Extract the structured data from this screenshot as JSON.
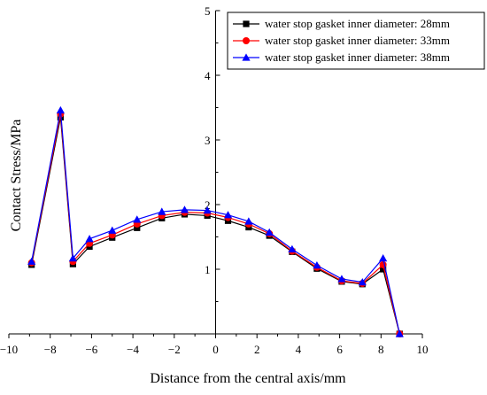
{
  "chart_data": {
    "type": "line",
    "xlabel": "Distance from the central axis/mm",
    "ylabel": "Contact Stress/MPa",
    "xlim": [
      -10,
      10
    ],
    "ylim": [
      0,
      5
    ],
    "xticks": [
      -10,
      -8,
      -6,
      -4,
      -2,
      0,
      2,
      4,
      6,
      8,
      10
    ],
    "yticks": [
      1,
      2,
      3,
      4,
      5
    ],
    "y_axis_position": "x = 0",
    "grid": false,
    "legend_position": "top-right",
    "series": [
      {
        "name": "water stop gasket inner diameter: 28mm",
        "color": "#000000",
        "marker": "square",
        "x": [
          -8.9,
          -7.5,
          -6.9,
          -6.1,
          -5.0,
          -3.8,
          -2.6,
          -1.5,
          -0.4,
          0.6,
          1.6,
          2.6,
          3.7,
          4.9,
          6.1,
          7.1,
          8.1,
          8.9
        ],
        "y": [
          1.07,
          3.35,
          1.08,
          1.35,
          1.49,
          1.64,
          1.79,
          1.85,
          1.83,
          1.75,
          1.65,
          1.52,
          1.27,
          1.01,
          0.81,
          0.77,
          1.0,
          0.0
        ]
      },
      {
        "name": "water stop gasket inner diameter: 33mm",
        "color": "#ff0000",
        "marker": "circle",
        "x": [
          -8.9,
          -7.5,
          -6.9,
          -6.1,
          -5.0,
          -3.8,
          -2.6,
          -1.5,
          -0.4,
          0.6,
          1.6,
          2.6,
          3.7,
          4.9,
          6.1,
          7.1,
          8.1,
          8.9
        ],
        "y": [
          1.1,
          3.4,
          1.12,
          1.4,
          1.53,
          1.7,
          1.83,
          1.88,
          1.87,
          1.8,
          1.7,
          1.55,
          1.28,
          1.03,
          0.82,
          0.78,
          1.07,
          0.0
        ]
      },
      {
        "name": "water stop gasket inner diameter: 38mm",
        "color": "#0000ff",
        "marker": "triangle",
        "x": [
          -8.9,
          -7.5,
          -6.9,
          -6.1,
          -5.0,
          -3.8,
          -2.6,
          -1.5,
          -0.4,
          0.6,
          1.6,
          2.6,
          3.7,
          4.9,
          6.1,
          7.1,
          8.1,
          8.9
        ],
        "y": [
          1.12,
          3.46,
          1.17,
          1.47,
          1.6,
          1.77,
          1.89,
          1.92,
          1.91,
          1.84,
          1.74,
          1.57,
          1.31,
          1.06,
          0.85,
          0.8,
          1.17,
          0.0
        ]
      }
    ]
  }
}
